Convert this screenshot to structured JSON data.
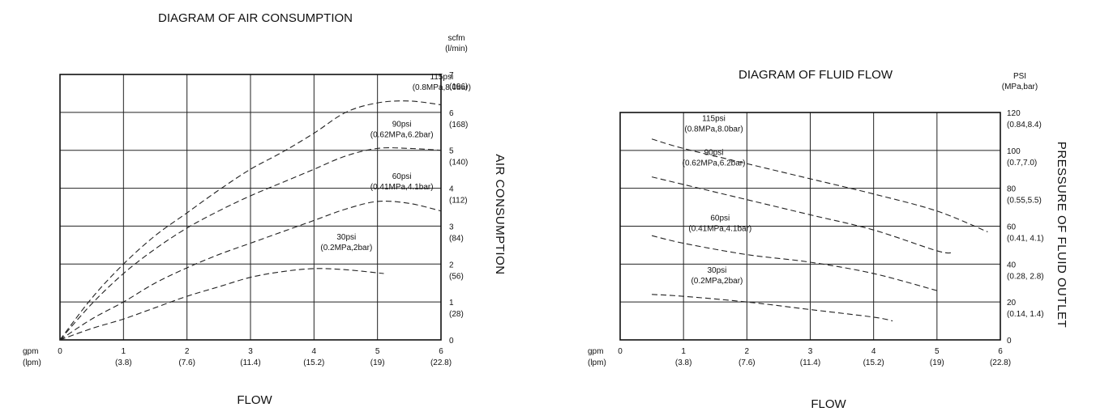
{
  "chart_data": [
    {
      "type": "line",
      "title": "DIAGRAM OF AIR CONSUMPTION",
      "xlabel": "FLOW",
      "ylabel": "AIR CONSUMPTION",
      "x_unit_primary": "gpm",
      "x_unit_secondary": "(lpm)",
      "y_unit_primary": "scfm",
      "y_unit_secondary": "(l/min)",
      "xlim": [
        0,
        6
      ],
      "ylim": [
        0,
        7
      ],
      "grid": true,
      "x_ticks": [
        {
          "v": 0,
          "l1": "0",
          "l2": ""
        },
        {
          "v": 1,
          "l1": "1",
          "l2": "(3.8)"
        },
        {
          "v": 2,
          "l1": "2",
          "l2": "(7.6)"
        },
        {
          "v": 3,
          "l1": "3",
          "l2": "(11.4)"
        },
        {
          "v": 4,
          "l1": "4",
          "l2": "(15.2)"
        },
        {
          "v": 5,
          "l1": "5",
          "l2": "(19)"
        },
        {
          "v": 6,
          "l1": "6",
          "l2": "(22.8)"
        }
      ],
      "y_ticks": [
        {
          "v": 0,
          "l1": "0",
          "l2": ""
        },
        {
          "v": 1,
          "l1": "1",
          "l2": "(28)"
        },
        {
          "v": 2,
          "l1": "2",
          "l2": "(56)"
        },
        {
          "v": 3,
          "l1": "3",
          "l2": "(84)"
        },
        {
          "v": 4,
          "l1": "4",
          "l2": "(112)"
        },
        {
          "v": 5,
          "l1": "5",
          "l2": "(140)"
        },
        {
          "v": 6,
          "l1": "6",
          "l2": "(168)"
        },
        {
          "v": 7,
          "l1": "7",
          "l2": "(196)"
        }
      ],
      "series": [
        {
          "name": "115psi",
          "sub": "(0.8MPa,8.0bar)",
          "x": [
            0,
            0.5,
            1,
            1.5,
            2,
            2.5,
            3,
            3.5,
            4,
            4.5,
            5,
            5.5,
            6
          ],
          "y": [
            0,
            1.1,
            2.0,
            2.75,
            3.35,
            3.95,
            4.5,
            4.95,
            5.45,
            6.0,
            6.25,
            6.3,
            6.2
          ]
        },
        {
          "name": "90psi",
          "sub": "(0.62MPa,6.2bar)",
          "x": [
            0,
            0.5,
            1,
            1.5,
            2,
            2.5,
            3,
            3.5,
            4,
            4.5,
            5,
            5.5,
            6
          ],
          "y": [
            0,
            0.95,
            1.75,
            2.4,
            2.95,
            3.4,
            3.8,
            4.15,
            4.5,
            4.85,
            5.05,
            5.05,
            5.0
          ]
        },
        {
          "name": "60psi",
          "sub": "(0.41MPa,4.1bar)",
          "x": [
            0,
            0.5,
            1,
            1.5,
            2,
            2.5,
            3,
            3.5,
            4,
            4.5,
            5,
            5.5,
            6
          ],
          "y": [
            0,
            0.55,
            1.0,
            1.5,
            1.9,
            2.25,
            2.55,
            2.85,
            3.15,
            3.45,
            3.65,
            3.6,
            3.4
          ]
        },
        {
          "name": "30psi",
          "sub": "(0.2MPa,2bar)",
          "x": [
            0,
            0.5,
            1,
            1.5,
            2,
            2.5,
            3,
            3.5,
            4,
            4.5,
            5.1
          ],
          "y": [
            0,
            0.3,
            0.55,
            0.85,
            1.15,
            1.4,
            1.65,
            1.8,
            1.88,
            1.85,
            1.75
          ]
        }
      ]
    },
    {
      "type": "line",
      "title": "DIAGRAM OF FLUID FLOW",
      "xlabel": "FLOW",
      "ylabel": "PRESSURE OF FLUID OUTLET",
      "x_unit_primary": "gpm",
      "x_unit_secondary": "(lpm)",
      "y_unit_primary": "PSI",
      "y_unit_secondary": "(MPa,bar)",
      "xlim": [
        0,
        6
      ],
      "ylim": [
        0,
        120
      ],
      "grid": true,
      "x_ticks": [
        {
          "v": 0,
          "l1": "0",
          "l2": ""
        },
        {
          "v": 1,
          "l1": "1",
          "l2": "(3.8)"
        },
        {
          "v": 2,
          "l1": "2",
          "l2": "(7.6)"
        },
        {
          "v": 3,
          "l1": "3",
          "l2": "(11.4)"
        },
        {
          "v": 4,
          "l1": "4",
          "l2": "(15.2)"
        },
        {
          "v": 5,
          "l1": "5",
          "l2": "(19)"
        },
        {
          "v": 6,
          "l1": "6",
          "l2": "(22.8)"
        }
      ],
      "y_ticks": [
        {
          "v": 0,
          "l1": "0",
          "l2": ""
        },
        {
          "v": 20,
          "l1": "20",
          "l2": "(0.14, 1.4)"
        },
        {
          "v": 40,
          "l1": "40",
          "l2": "(0.28, 2.8)"
        },
        {
          "v": 60,
          "l1": "60",
          "l2": "(0.41, 4.1)"
        },
        {
          "v": 80,
          "l1": "80",
          "l2": "(0.55,5.5)"
        },
        {
          "v": 100,
          "l1": "100",
          "l2": "(0.7,7.0)"
        },
        {
          "v": 120,
          "l1": "120",
          "l2": "(0.84,8.4)"
        }
      ],
      "series": [
        {
          "name": "115psi",
          "sub": "(0.8MPa,8.0bar)",
          "x": [
            0.5,
            1,
            2,
            3,
            4,
            5,
            5.8
          ],
          "y": [
            106,
            101,
            93,
            85,
            77,
            68,
            57
          ]
        },
        {
          "name": "90psi",
          "sub": "(0.62MPa,6.2bar)",
          "x": [
            0.5,
            1,
            2,
            3,
            4,
            5,
            5.25
          ],
          "y": [
            86,
            82,
            74,
            66,
            58,
            47,
            46
          ]
        },
        {
          "name": "60psi",
          "sub": "(0.41MPa,4.1bar)",
          "x": [
            0.5,
            1,
            2,
            3,
            4,
            5
          ],
          "y": [
            55,
            51,
            45,
            41,
            35,
            26
          ]
        },
        {
          "name": "30psi",
          "sub": "(0.2MPa,2bar)",
          "x": [
            0.5,
            1,
            2,
            3,
            4,
            4.3
          ],
          "y": [
            24,
            23,
            20,
            16,
            12,
            10
          ]
        }
      ]
    }
  ]
}
